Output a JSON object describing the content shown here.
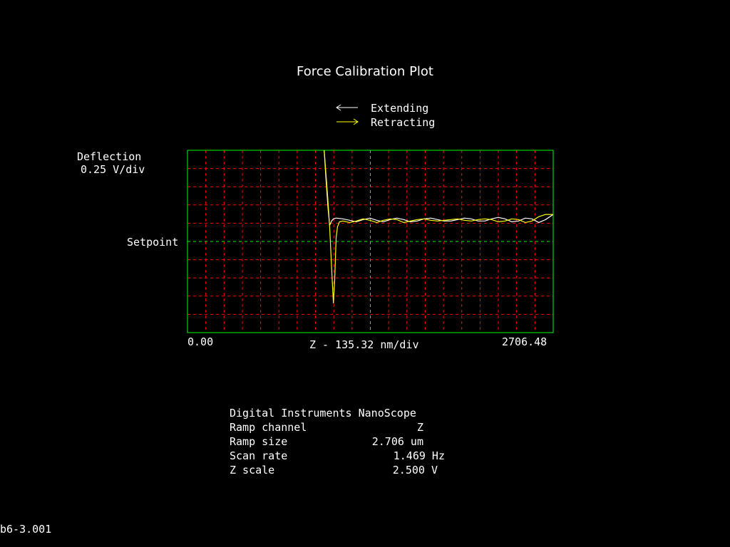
{
  "chart_data": {
    "type": "line",
    "title": "Force Calibration Plot",
    "xlabel": "Z - 135.32 nm/div",
    "ylabel": "Deflection",
    "ylabel_scale": "0.25 V/div",
    "setpoint_label": "Setpoint",
    "x_min_label": "0.00",
    "x_max_label": "2706.48",
    "xlim": [
      0,
      2706.48
    ],
    "ylim": [
      -1.25,
      1.25
    ],
    "grid": true,
    "legend_position": "top-center",
    "colors": {
      "frame": "#00ff00",
      "grid": "#ff0000",
      "setpoint": "#00ff00",
      "extending": "#ffffff",
      "retracting": "#ffff00"
    },
    "series": [
      {
        "name": "Extending",
        "x": [
          1010,
          1024,
          1040,
          1052,
          1066,
          1080,
          1100,
          1150,
          1200,
          1250,
          1300,
          1350,
          1400,
          1450,
          1500,
          1550,
          1600,
          1650,
          1700,
          1750,
          1800,
          1850,
          1900,
          1950,
          2000,
          2050,
          2100,
          2150,
          2200,
          2250,
          2300,
          2350,
          2400,
          2450,
          2500,
          2550,
          2600,
          2650,
          2706.48
        ],
        "y": [
          1.3,
          0.88,
          0.46,
          0.22,
          0.28,
          0.31,
          0.32,
          0.31,
          0.29,
          0.27,
          0.3,
          0.32,
          0.29,
          0.27,
          0.3,
          0.32,
          0.3,
          0.27,
          0.28,
          0.31,
          0.32,
          0.3,
          0.28,
          0.28,
          0.3,
          0.32,
          0.31,
          0.28,
          0.28,
          0.31,
          0.33,
          0.31,
          0.27,
          0.28,
          0.32,
          0.31,
          0.26,
          0.3,
          0.37
        ]
      },
      {
        "name": "Retracting",
        "x": [
          1010,
          1040,
          1052,
          1066,
          1080,
          1090,
          1100,
          1110,
          1125,
          1150,
          1200,
          1250,
          1300,
          1350,
          1400,
          1450,
          1500,
          1550,
          1600,
          1650,
          1700,
          1750,
          1800,
          1850,
          1900,
          1950,
          2000,
          2050,
          2100,
          2150,
          2200,
          2250,
          2300,
          2350,
          2400,
          2450,
          2500,
          2550,
          2600,
          2650,
          2706.48
        ],
        "y": [
          1.3,
          0.55,
          0.2,
          -0.35,
          -0.85,
          -0.5,
          0.05,
          0.2,
          0.27,
          0.28,
          0.26,
          0.28,
          0.31,
          0.29,
          0.26,
          0.29,
          0.31,
          0.3,
          0.26,
          0.28,
          0.3,
          0.31,
          0.29,
          0.28,
          0.29,
          0.3,
          0.31,
          0.29,
          0.28,
          0.3,
          0.31,
          0.3,
          0.27,
          0.28,
          0.31,
          0.3,
          0.26,
          0.28,
          0.34,
          0.37,
          0.37
        ]
      }
    ]
  },
  "legend": {
    "extending_label": "Extending",
    "retracting_label": "Retracting"
  },
  "info": {
    "header": "Digital Instruments NanoScope",
    "rows": [
      {
        "label": "Ramp channel",
        "value": "Z"
      },
      {
        "label": "Ramp size",
        "value": "2.706 um"
      },
      {
        "label": "Scan rate",
        "value": "1.469 Hz"
      },
      {
        "label": "Z scale",
        "value": "2.500 V"
      }
    ]
  },
  "file_name": "b6-3.001"
}
